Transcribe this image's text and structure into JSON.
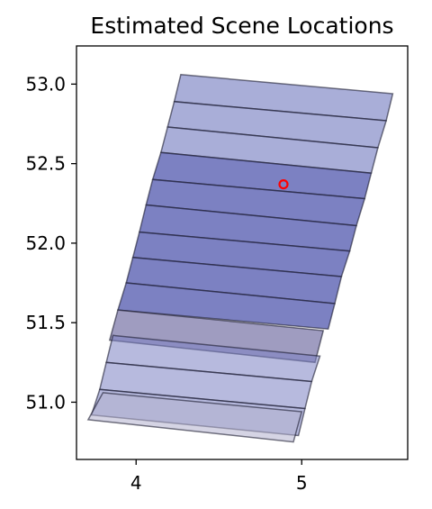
{
  "chart_data": {
    "type": "map-footprints",
    "title": "Estimated Scene Locations",
    "xlabel": "",
    "ylabel": "",
    "xlim": [
      3.64,
      5.64
    ],
    "ylim": [
      50.64,
      53.24
    ],
    "xticks": [
      4,
      5
    ],
    "yticks": [
      51.0,
      51.5,
      52.0,
      52.5,
      53.0
    ],
    "grid": false,
    "scenes": [
      {
        "corners": [
          [
            4.27,
            53.06
          ],
          [
            5.55,
            52.94
          ],
          [
            5.51,
            52.77
          ],
          [
            4.23,
            52.89
          ]
        ],
        "fill": "#7b82c3",
        "alpha": 0.65
      },
      {
        "corners": [
          [
            4.23,
            52.89
          ],
          [
            5.51,
            52.77
          ],
          [
            5.46,
            52.6
          ],
          [
            4.19,
            52.73
          ]
        ],
        "fill": "#7b82c3",
        "alpha": 0.65
      },
      {
        "corners": [
          [
            4.19,
            52.73
          ],
          [
            5.46,
            52.6
          ],
          [
            5.42,
            52.44
          ],
          [
            4.15,
            52.57
          ]
        ],
        "fill": "#7b82c3",
        "alpha": 0.65
      },
      {
        "corners": [
          [
            4.15,
            52.57
          ],
          [
            5.42,
            52.44
          ],
          [
            5.38,
            52.28
          ],
          [
            4.1,
            52.4
          ]
        ],
        "fill": "#5b62b3",
        "alpha": 0.8
      },
      {
        "corners": [
          [
            4.1,
            52.4
          ],
          [
            5.38,
            52.28
          ],
          [
            5.33,
            52.11
          ],
          [
            4.06,
            52.24
          ]
        ],
        "fill": "#5b62b3",
        "alpha": 0.8
      },
      {
        "corners": [
          [
            4.06,
            52.24
          ],
          [
            5.33,
            52.11
          ],
          [
            5.29,
            51.95
          ],
          [
            4.02,
            52.07
          ]
        ],
        "fill": "#5b62b3",
        "alpha": 0.8
      },
      {
        "corners": [
          [
            4.02,
            52.07
          ],
          [
            5.29,
            51.95
          ],
          [
            5.24,
            51.79
          ],
          [
            3.98,
            51.91
          ]
        ],
        "fill": "#5b62b3",
        "alpha": 0.8
      },
      {
        "corners": [
          [
            3.98,
            51.91
          ],
          [
            5.24,
            51.79
          ],
          [
            5.2,
            51.62
          ],
          [
            3.94,
            51.75
          ]
        ],
        "fill": "#5b62b3",
        "alpha": 0.8
      },
      {
        "corners": [
          [
            3.94,
            51.75
          ],
          [
            5.2,
            51.62
          ],
          [
            5.16,
            51.46
          ],
          [
            3.89,
            51.58
          ]
        ],
        "fill": "#5b62b3",
        "alpha": 0.8
      },
      {
        "corners": [
          [
            3.89,
            51.58
          ],
          [
            5.13,
            51.45
          ],
          [
            5.08,
            51.25
          ],
          [
            3.84,
            51.39
          ]
        ],
        "fill": "#8e8bb5",
        "alpha": 0.85
      },
      {
        "corners": [
          [
            3.86,
            51.42
          ],
          [
            5.11,
            51.29
          ],
          [
            5.06,
            51.13
          ],
          [
            3.82,
            51.25
          ]
        ],
        "fill": "#7b82c3",
        "alpha": 0.55
      },
      {
        "corners": [
          [
            3.82,
            51.25
          ],
          [
            5.06,
            51.13
          ],
          [
            5.02,
            50.96
          ],
          [
            3.78,
            51.08
          ]
        ],
        "fill": "#7b82c3",
        "alpha": 0.55
      },
      {
        "corners": [
          [
            3.78,
            51.08
          ],
          [
            5.02,
            50.96
          ],
          [
            4.98,
            50.79
          ],
          [
            3.73,
            50.92
          ]
        ],
        "fill": "#7b82c3",
        "alpha": 0.55
      },
      {
        "corners": [
          [
            3.8,
            51.06
          ],
          [
            5.0,
            50.94
          ],
          [
            4.95,
            50.75
          ],
          [
            3.71,
            50.89
          ]
        ],
        "fill": "#b3b1cd",
        "alpha": 0.55
      }
    ],
    "marker": {
      "x": 4.89,
      "y": 52.37,
      "color": "#ff0000",
      "shape": "open-circle"
    }
  }
}
